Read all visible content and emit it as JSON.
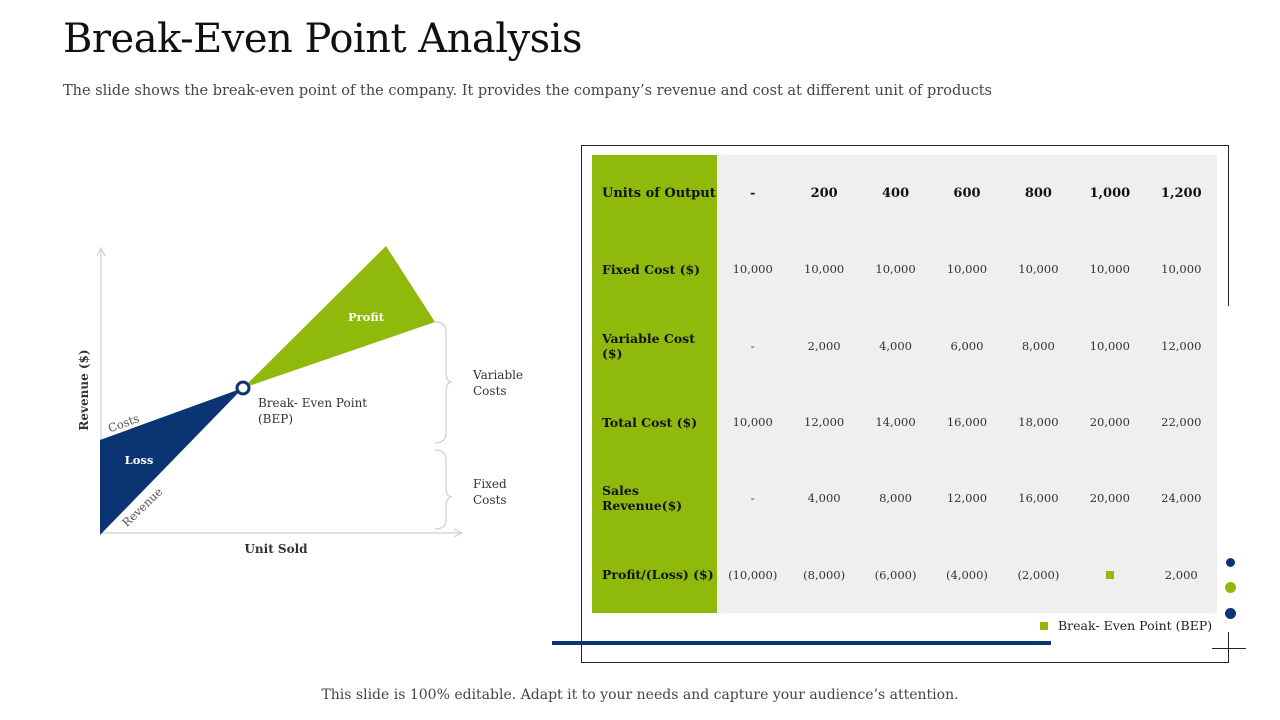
{
  "slide": {
    "title": "Break-Even Point Analysis",
    "subtitle": "The slide shows the break-even point of the company. It provides the company’s revenue and cost at different unit of products",
    "footer": "This slide is 100% editable. Adapt it to your needs and capture your audience’s attention."
  },
  "diagram": {
    "y_axis_label": "Revenue ($)",
    "x_axis_label": "Unit Sold",
    "profit_label": "Profit",
    "loss_label": "Loss",
    "costs_label": "Costs",
    "revenue_label": "Revenue",
    "bep_line1": "Break- Even Point",
    "bep_line2": "(BEP)",
    "variable_costs_line1": "Variable",
    "variable_costs_line2": "Costs",
    "fixed_costs_line1": "Fixed",
    "fixed_costs_line2": "Costs"
  },
  "table": {
    "rows": [
      {
        "label": "Units of Output",
        "values": [
          "-",
          "200",
          "400",
          "600",
          "800",
          "1,000",
          "1,200"
        ]
      },
      {
        "label": "Fixed Cost ($)",
        "values": [
          "10,000",
          "10,000",
          "10,000",
          "10,000",
          "10,000",
          "10,000",
          "10,000"
        ]
      },
      {
        "label": "Variable Cost ($)",
        "values": [
          "-",
          "2,000",
          "4,000",
          "6,000",
          "8,000",
          "10,000",
          "12,000"
        ]
      },
      {
        "label": "Total Cost ($)",
        "values": [
          "10,000",
          "12,000",
          "14,000",
          "16,000",
          "18,000",
          "20,000",
          "22,000"
        ]
      },
      {
        "label": "Sales Revenue($)",
        "values": [
          "-",
          "4,000",
          "8,000",
          "12,000",
          "16,000",
          "20,000",
          "24,000"
        ]
      },
      {
        "label": "Profit/(Loss) ($)",
        "values": [
          "(10,000)",
          "(8,000)",
          "(6,000)",
          "(4,000)",
          "(2,000)",
          "",
          "2,000"
        ]
      }
    ],
    "legend_label": "Break- Even Point (BEP)"
  },
  "colors": {
    "green": "#8fba0c",
    "navy": "#0b3472"
  }
}
